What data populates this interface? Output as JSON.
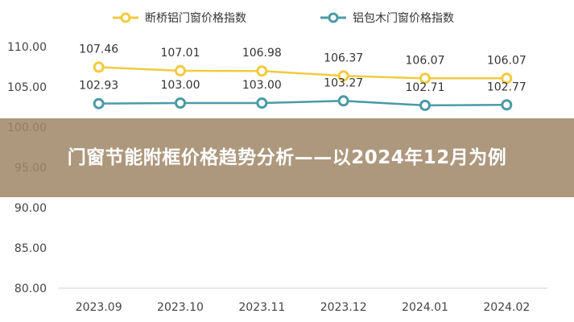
{
  "page_title": "门窗节能附框价格趋势分析——以2024年12月为例",
  "chart_data": {
    "type": "line",
    "categories": [
      "2023.09",
      "2023.10",
      "2023.11",
      "2023.12",
      "2024.01",
      "2024.02"
    ],
    "series": [
      {
        "name": "断桥铝门窗价格指数",
        "color": "#f2ca3f",
        "values": [
          107.46,
          107.01,
          106.98,
          106.37,
          106.07,
          106.07
        ],
        "labels": [
          "107.46",
          "107.01",
          "106.98",
          "106.37",
          "106.07",
          "106.07"
        ]
      },
      {
        "name": "铝包木门窗价格指数",
        "color": "#4a9aa6",
        "values": [
          102.93,
          103.0,
          103.0,
          103.27,
          102.71,
          102.77
        ],
        "labels": [
          "102.93",
          "103.00",
          "103.00",
          "103.27",
          "102.71",
          "102.77"
        ]
      }
    ],
    "y_ticks": [
      "110.00",
      "105.00",
      "100.00",
      "95.00",
      "90.00",
      "85.00",
      "80.00"
    ],
    "ylim": [
      80,
      110
    ],
    "grid": false,
    "legend_position": "top",
    "title": "",
    "xlabel": "",
    "ylabel": ""
  }
}
